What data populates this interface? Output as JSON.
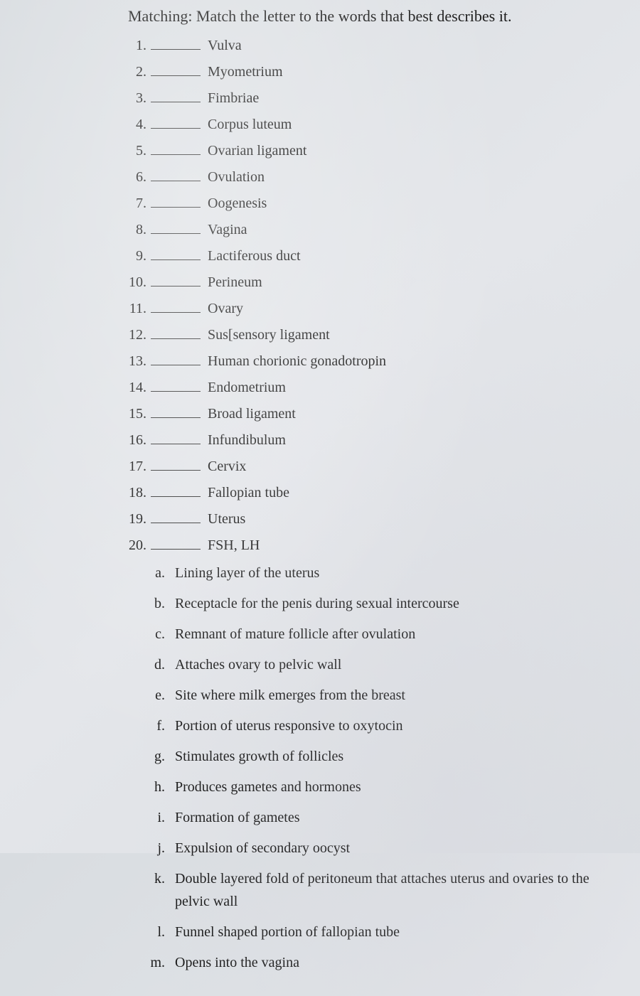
{
  "heading": "Matching: Match the letter to the words that best describes it.",
  "numbered": [
    {
      "n": "1.",
      "term": "Vulva"
    },
    {
      "n": "2.",
      "term": "Myometrium"
    },
    {
      "n": "3.",
      "term": "Fimbriae"
    },
    {
      "n": "4.",
      "term": "Corpus luteum"
    },
    {
      "n": "5.",
      "term": "Ovarian ligament"
    },
    {
      "n": "6.",
      "term": "Ovulation"
    },
    {
      "n": "7.",
      "term": "Oogenesis"
    },
    {
      "n": "8.",
      "term": "Vagina"
    },
    {
      "n": "9.",
      "term": "Lactiferous duct"
    },
    {
      "n": "10.",
      "term": "Perineum"
    },
    {
      "n": "11.",
      "term": "Ovary"
    },
    {
      "n": "12.",
      "term": "Sus[sensory ligament"
    },
    {
      "n": "13.",
      "term": "Human chorionic gonadotropin"
    },
    {
      "n": "14.",
      "term": "Endometrium"
    },
    {
      "n": "15.",
      "term": "Broad ligament"
    },
    {
      "n": "16.",
      "term": "Infundibulum"
    },
    {
      "n": "17.",
      "term": "Cervix"
    },
    {
      "n": "18.",
      "term": "Fallopian tube"
    },
    {
      "n": "19.",
      "term": "Uterus"
    },
    {
      "n": "20.",
      "term": "FSH, LH"
    }
  ],
  "lettered": [
    {
      "l": "a.",
      "desc": "Lining layer of the uterus"
    },
    {
      "l": "b.",
      "desc": "Receptacle for the penis during sexual intercourse"
    },
    {
      "l": "c.",
      "desc": "Remnant of mature follicle after ovulation"
    },
    {
      "l": "d.",
      "desc": "Attaches ovary to pelvic wall"
    },
    {
      "l": "e.",
      "desc": "Site where milk emerges from the breast"
    },
    {
      "l": "f.",
      "desc": "Portion of uterus responsive to oxytocin"
    },
    {
      "l": "g.",
      "desc": "Stimulates growth of follicles"
    },
    {
      "l": "h.",
      "desc": "Produces gametes and hormones"
    },
    {
      "l": "i.",
      "desc": "Formation of gametes"
    },
    {
      "l": "j.",
      "desc": "Expulsion of secondary oocyst"
    },
    {
      "l": "k.",
      "desc": "Double layered fold of peritoneum that attaches uterus and ovaries to the pelvic wall"
    },
    {
      "l": "l.",
      "desc": "Funnel shaped portion of fallopian tube"
    },
    {
      "l": "m.",
      "desc": "Opens into the vagina"
    }
  ]
}
